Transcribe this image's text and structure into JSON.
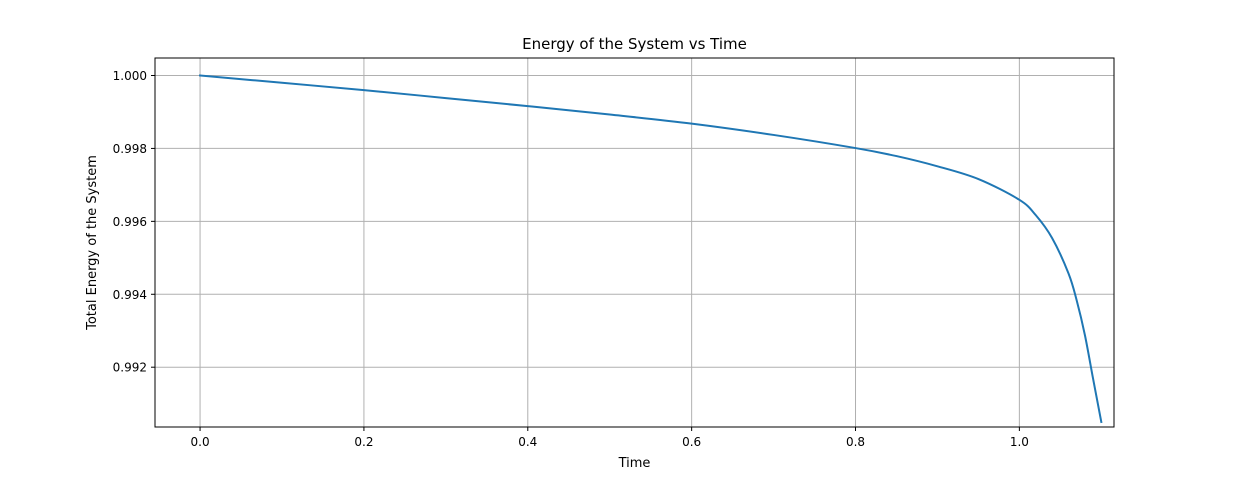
{
  "chart_data": {
    "type": "line",
    "title": "Energy of the System vs Time",
    "xlabel": "Time",
    "ylabel": "Total Energy of the System",
    "xlim": [
      -0.055,
      1.1155
    ],
    "ylim": [
      0.99036,
      1.00048
    ],
    "x_ticks": [
      0.0,
      0.2,
      0.4,
      0.6,
      0.8,
      1.0
    ],
    "x_tick_labels": [
      "0.0",
      "0.2",
      "0.4",
      "0.6",
      "0.8",
      "1.0"
    ],
    "y_ticks": [
      0.992,
      0.994,
      0.996,
      0.998,
      1.0
    ],
    "y_tick_labels": [
      "0.992",
      "0.994",
      "0.996",
      "0.998",
      "1.000"
    ],
    "grid": true,
    "series": [
      {
        "color": "#1f77b4",
        "x": [
          0.0,
          0.1,
          0.2,
          0.3,
          0.4,
          0.5,
          0.6,
          0.7,
          0.8,
          0.85,
          0.9,
          0.95,
          1.0,
          1.02,
          1.04,
          1.06,
          1.07,
          1.08,
          1.09,
          1.1
        ],
        "y": [
          1.0,
          0.9998,
          0.9996,
          0.99938,
          0.99916,
          0.99893,
          0.99868,
          0.99837,
          0.99801,
          0.99779,
          0.99751,
          0.99716,
          0.99659,
          0.99617,
          0.99554,
          0.99457,
          0.99383,
          0.99288,
          0.99168,
          0.9905
        ]
      }
    ]
  }
}
